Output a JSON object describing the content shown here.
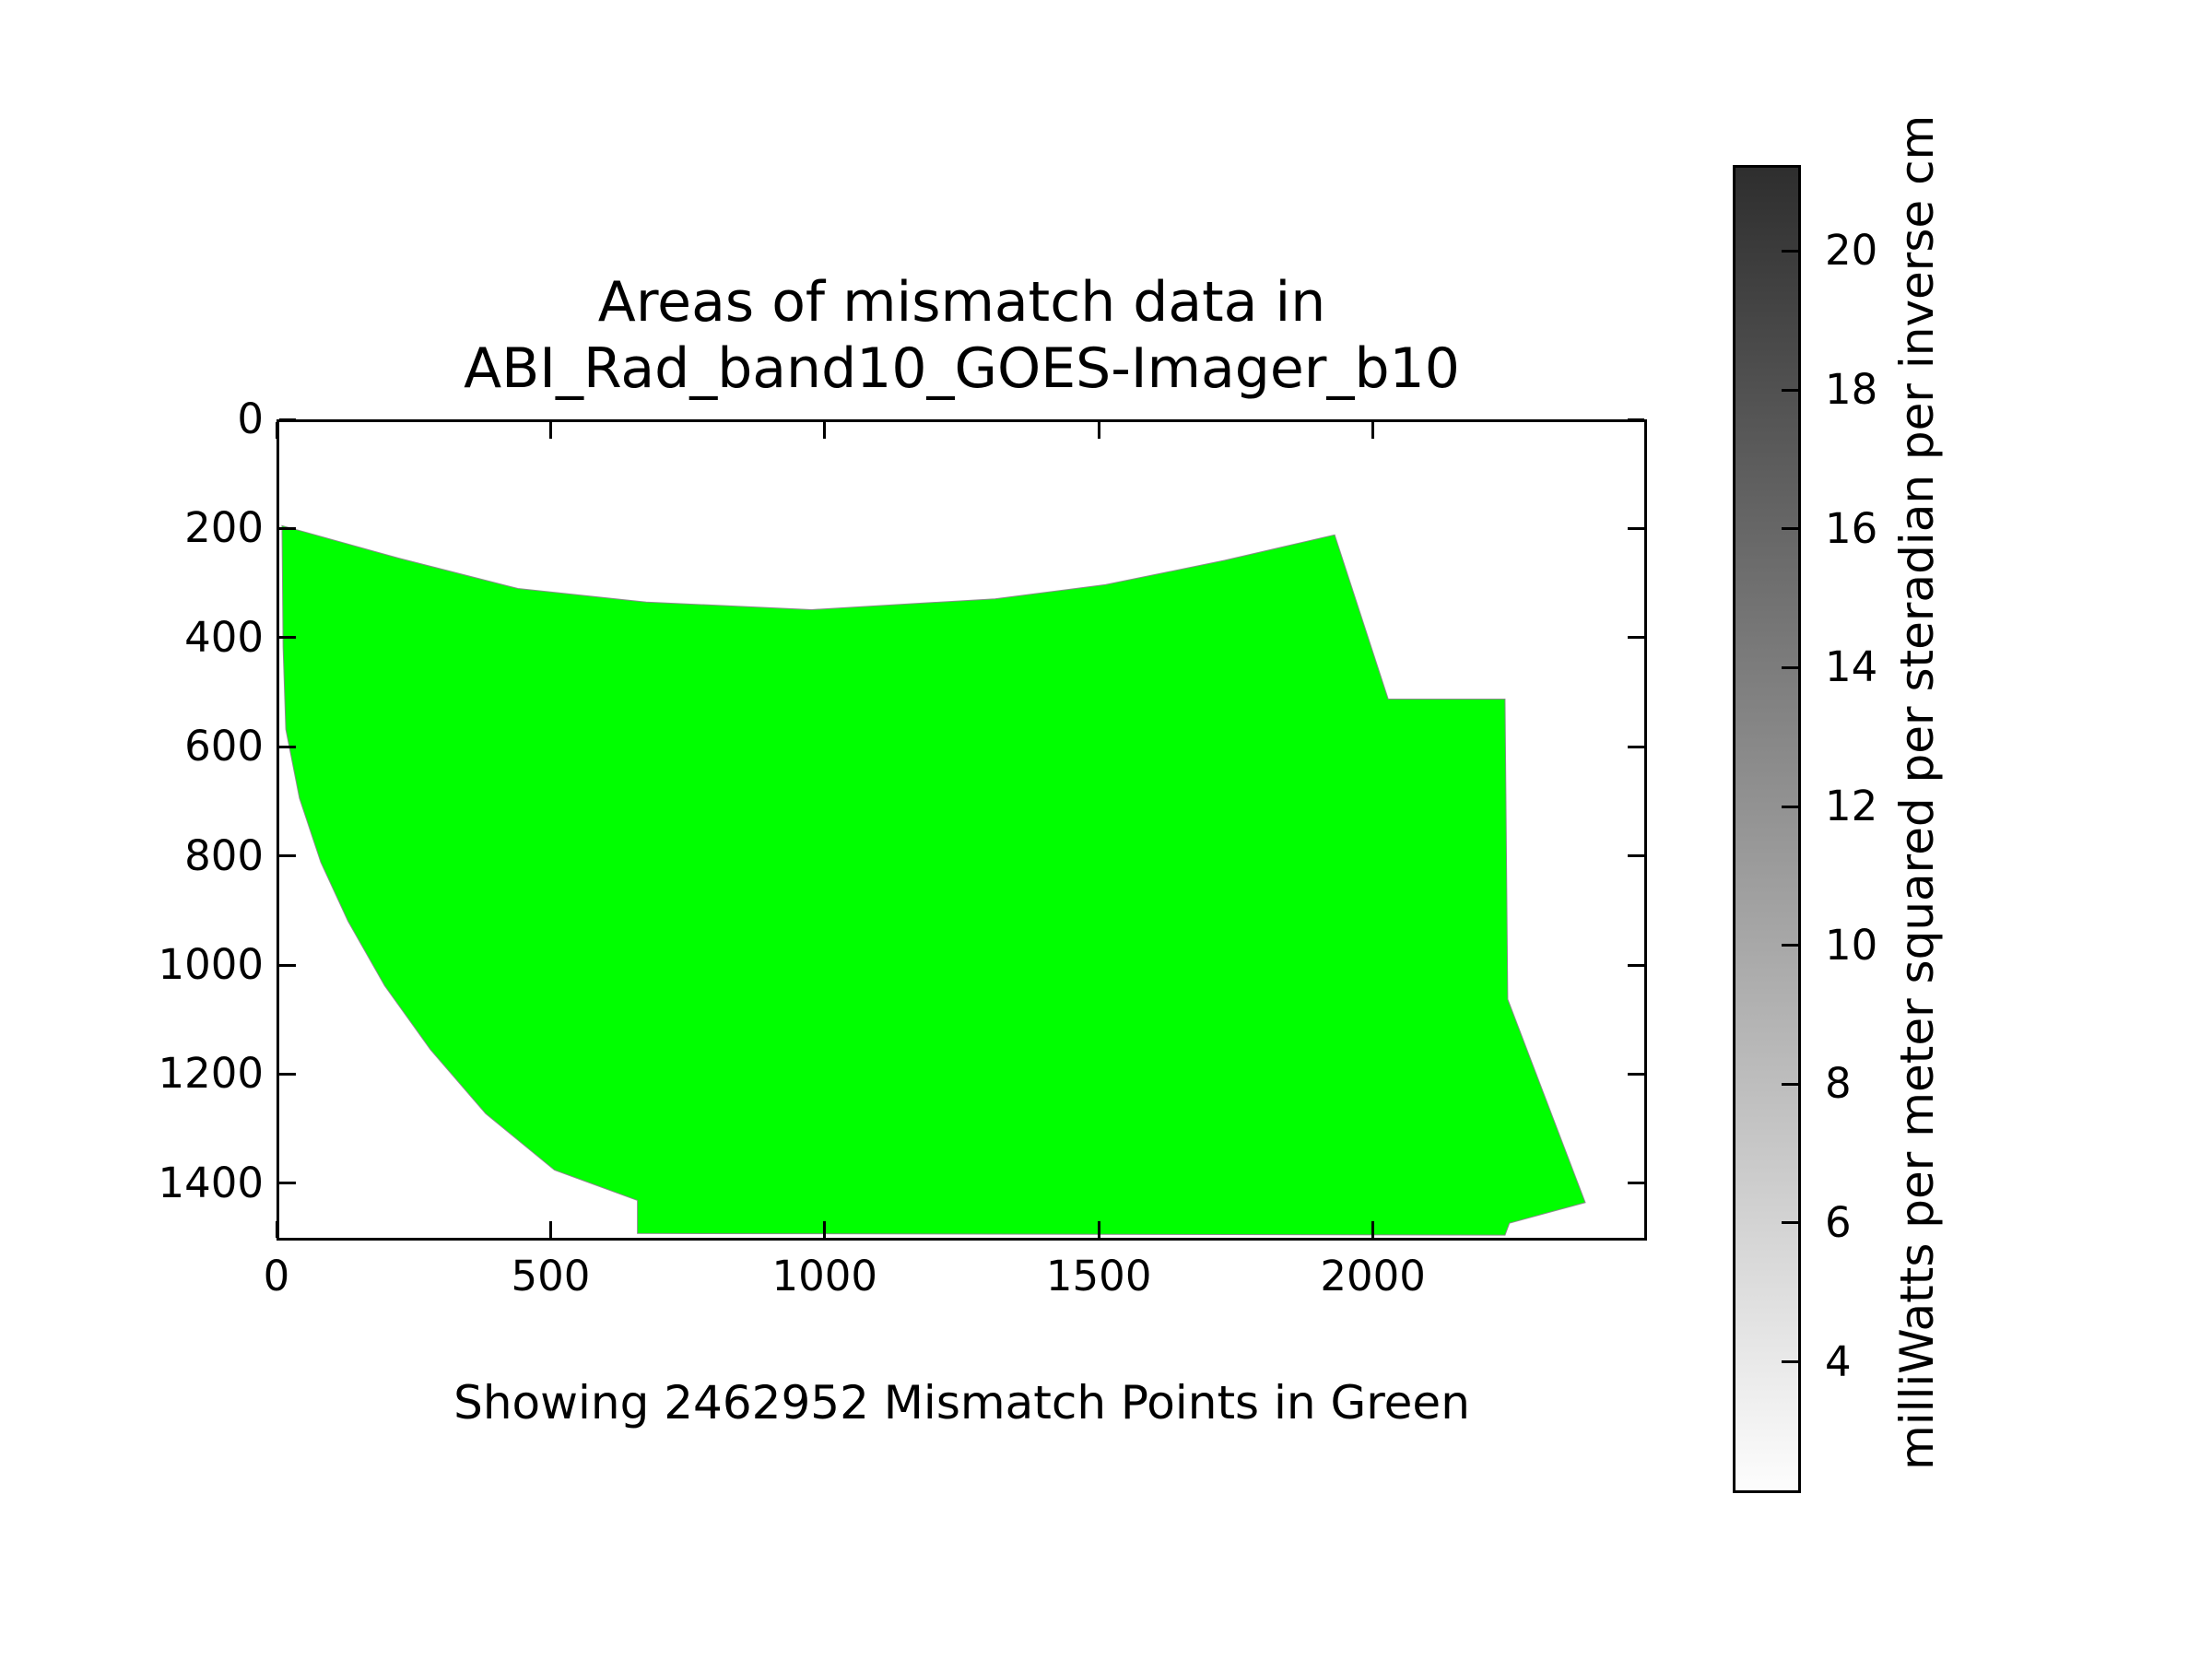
{
  "figure": {
    "title_line1": "Areas of mismatch data in",
    "title_line2": "ABI_Rad_band10_GOES-Imager_b10",
    "caption": "Showing 2462952 Mismatch Points in Green",
    "background_color": "#ffffff",
    "text_color": "#000000"
  },
  "chart_data": {
    "type": "area",
    "title": "Areas of mismatch data in ABI_Rad_band10_GOES-Imager_b10",
    "xlabel": "",
    "ylabel": "",
    "xlim": [
      0,
      2500
    ],
    "ylim": [
      1505,
      0
    ],
    "y_axis_inverted": true,
    "grid": false,
    "x_ticks": [
      0,
      500,
      1000,
      1500,
      2000
    ],
    "y_ticks": [
      0,
      200,
      400,
      600,
      800,
      1000,
      1200,
      1400
    ],
    "region": {
      "name": "mismatch-area",
      "color": "#00ff00",
      "edge_color": "#8a8a8a",
      "points": [
        [
          5,
          191
        ],
        [
          219,
          251
        ],
        [
          437,
          307
        ],
        [
          672,
          332
        ],
        [
          975,
          346
        ],
        [
          1311,
          326
        ],
        [
          1513,
          300
        ],
        [
          1732,
          255
        ],
        [
          1933,
          208
        ],
        [
          2031,
          511
        ],
        [
          2245,
          511
        ],
        [
          2250,
          1065
        ],
        [
          2392,
          1440
        ],
        [
          2253,
          1478
        ],
        [
          2245,
          1500
        ],
        [
          656,
          1497
        ],
        [
          656,
          1436
        ],
        [
          504,
          1380
        ],
        [
          378,
          1276
        ],
        [
          277,
          1158
        ],
        [
          193,
          1040
        ],
        [
          126,
          921
        ],
        [
          76,
          812
        ],
        [
          37,
          694
        ],
        [
          12,
          567
        ],
        [
          7,
          415
        ]
      ]
    }
  },
  "colorbar": {
    "label": "milliWatts per meter squared per steradian per inverse cm",
    "vmin": 2.11,
    "vmax": 21.24,
    "ticks": [
      4,
      6,
      8,
      10,
      12,
      14,
      16,
      18,
      20
    ],
    "top_color": "#2e2e2e",
    "bottom_color": "#fdfdfd"
  }
}
